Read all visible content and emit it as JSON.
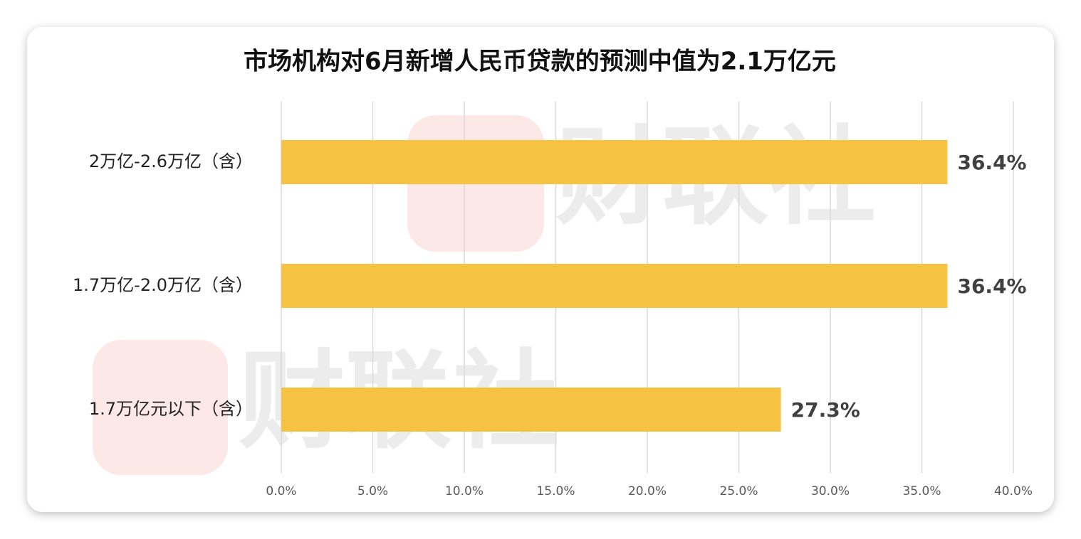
{
  "chart_data": {
    "type": "hbar",
    "title": "市场机构对6月新增人民币贷款的预测中值为2.1万亿元",
    "categories": [
      "2万亿-2.6万亿（含）",
      "1.7万亿-2.0万亿（含）",
      "1.7万亿元以下（含）"
    ],
    "values": [
      36.4,
      36.4,
      27.3
    ],
    "value_labels": [
      "36.4%",
      "36.4%",
      "27.3%"
    ],
    "color": "#f5c242",
    "xlim": [
      0,
      40
    ],
    "xticks": [
      {
        "value": 0,
        "label": "0.0%"
      },
      {
        "value": 5,
        "label": "5.0%"
      },
      {
        "value": 10,
        "label": "10.0%"
      },
      {
        "value": 15,
        "label": "15.0%"
      },
      {
        "value": 20,
        "label": "20.0%"
      },
      {
        "value": 25,
        "label": "25.0%"
      },
      {
        "value": 30,
        "label": "30.0%"
      },
      {
        "value": 35,
        "label": "35.0%"
      },
      {
        "value": 40,
        "label": "40.0%"
      }
    ],
    "grid": true,
    "watermark": "财联社"
  }
}
